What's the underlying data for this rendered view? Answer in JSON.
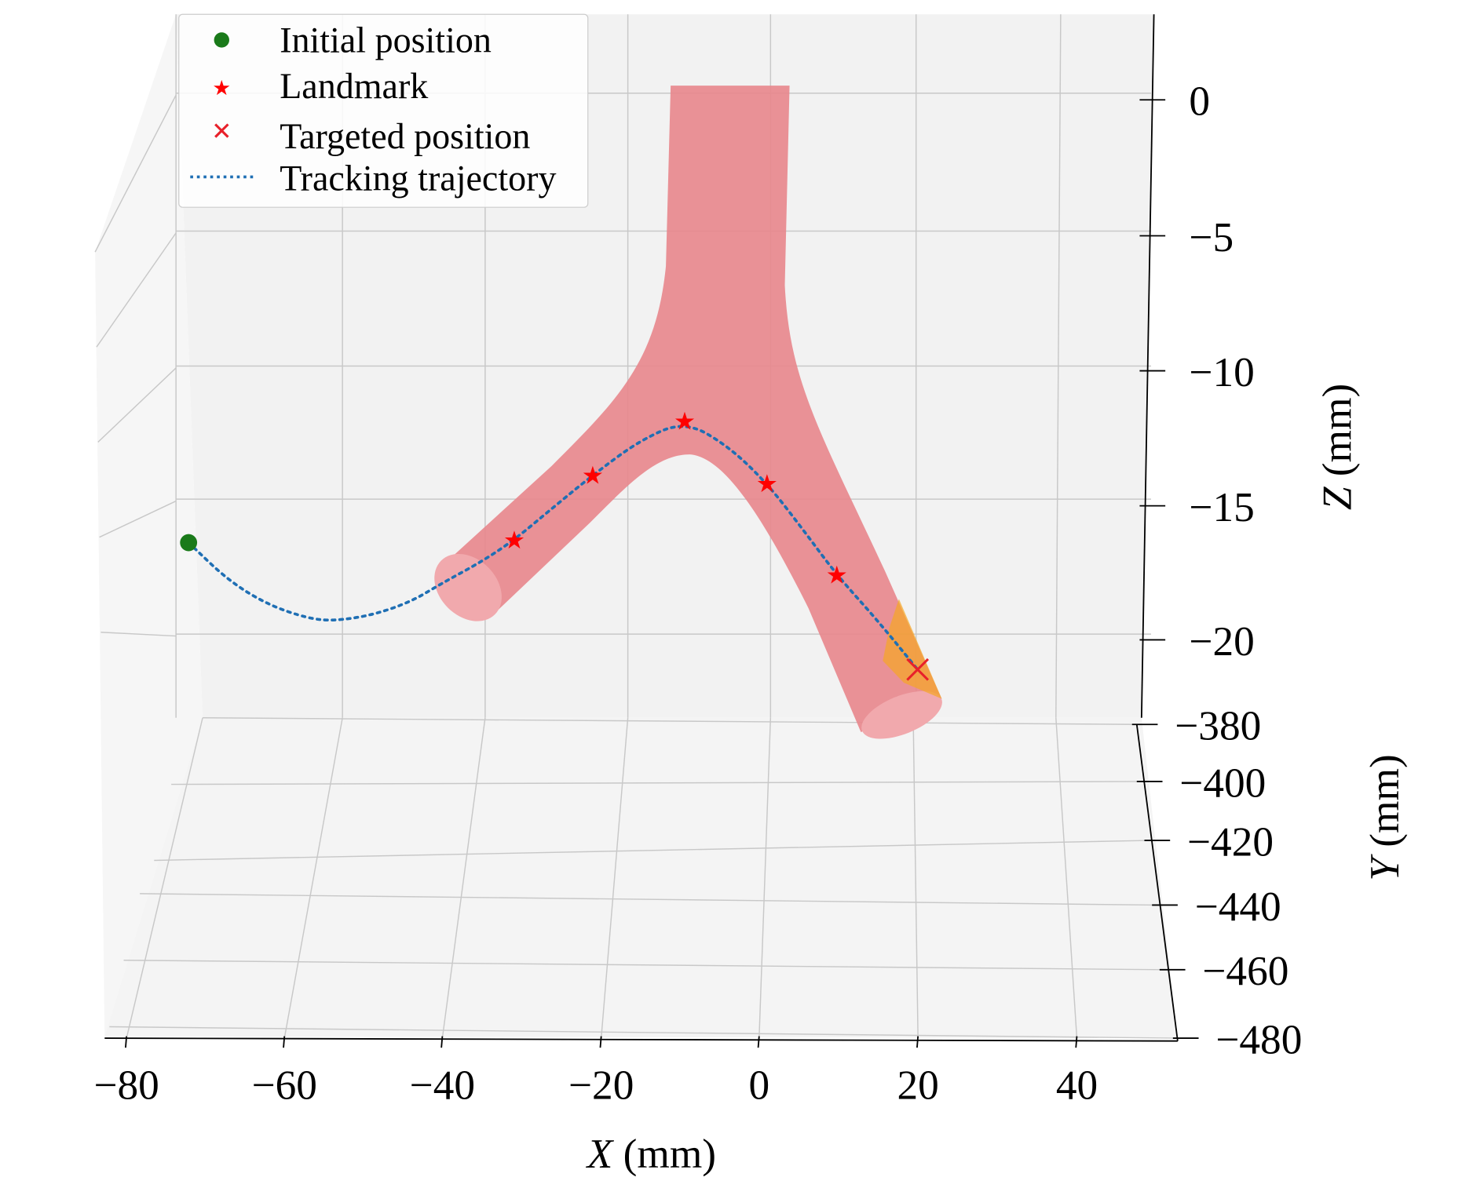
{
  "chart_data": {
    "type": "3d-line",
    "xlabel_var": "X",
    "xlabel_unit": "(mm)",
    "ylabel_var": "Y",
    "ylabel_unit": "(mm)",
    "zlabel_var": "Z",
    "zlabel_unit": "(mm)",
    "x_ticks": [
      "−80",
      "−60",
      "−40",
      "−20",
      "0",
      "20",
      "40"
    ],
    "y_ticks": [
      "−380",
      "−400",
      "−420",
      "−440",
      "−460",
      "−480"
    ],
    "z_ticks": [
      "0",
      "−5",
      "−10",
      "−15",
      "−20"
    ],
    "grid": true,
    "legend_placement": "top-left",
    "legend": [
      "Initial position",
      "Landmark",
      "Targeted position",
      "Tracking trajectory"
    ],
    "colors": {
      "initial": "#1a7a1a",
      "landmark": "#ff0000",
      "target": "#e8202a",
      "trajectory": "#1f6fb4",
      "vessel": "#e8868c",
      "target_region": "#f5a623"
    },
    "initial_position": {
      "x": -72,
      "z": -16.4
    },
    "landmarks": [
      {
        "x": -30.9,
        "z": -16.3
      },
      {
        "x": -21.0,
        "z": -13.9
      },
      {
        "x": -9.4,
        "z": -11.9
      },
      {
        "x": 1.0,
        "z": -14.2
      },
      {
        "x": 9.8,
        "z": -17.6
      }
    ],
    "targeted_position": {
      "x": 20.0,
      "z": -21.1
    },
    "trajectory": [
      {
        "x": -72,
        "z": -16.4
      },
      {
        "x": -67,
        "z": -17.8
      },
      {
        "x": -62,
        "z": -18.7
      },
      {
        "x": -57,
        "z": -19.2
      },
      {
        "x": -53.8,
        "z": -19.3
      },
      {
        "x": -49,
        "z": -19.1
      },
      {
        "x": -44,
        "z": -18.6
      },
      {
        "x": -40,
        "z": -17.9
      },
      {
        "x": -35,
        "z": -17.1
      },
      {
        "x": -30.9,
        "z": -16.3
      },
      {
        "x": -26,
        "z": -15.1
      },
      {
        "x": -21.0,
        "z": -13.9
      },
      {
        "x": -15,
        "z": -12.6
      },
      {
        "x": -9.4,
        "z": -11.9
      },
      {
        "x": -4,
        "z": -12.8
      },
      {
        "x": 1.0,
        "z": -14.2
      },
      {
        "x": 5.5,
        "z": -15.9
      },
      {
        "x": 9.8,
        "z": -17.6
      },
      {
        "x": 15,
        "z": -19.3
      },
      {
        "x": 20.0,
        "z": -21.1
      }
    ]
  }
}
